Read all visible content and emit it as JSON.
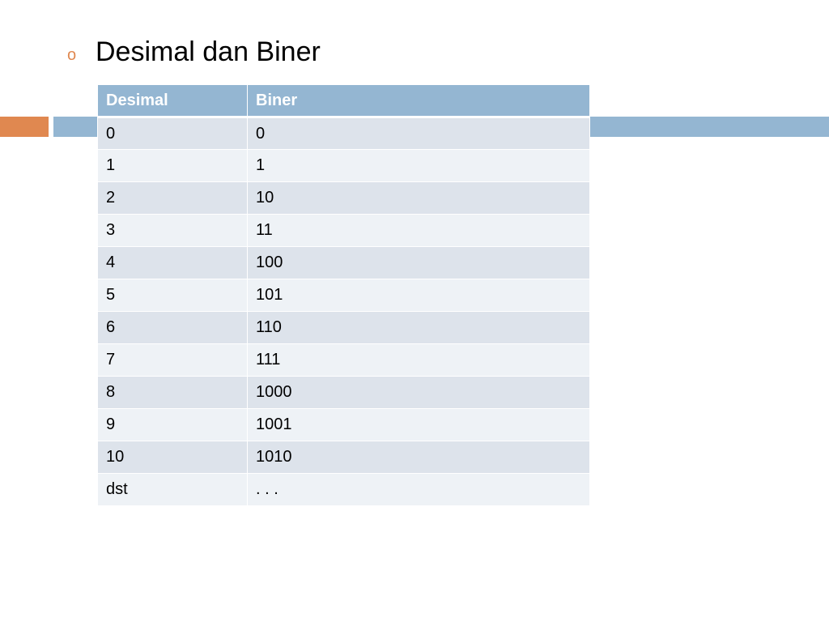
{
  "slide": {
    "title": "Desimal dan Biner",
    "bullet": "o"
  },
  "table": {
    "headers": [
      "Desimal",
      "Biner"
    ],
    "rows": [
      [
        "0",
        "0"
      ],
      [
        "1",
        "1"
      ],
      [
        "2",
        "10"
      ],
      [
        "3",
        "11"
      ],
      [
        "4",
        "100"
      ],
      [
        "5",
        "101"
      ],
      [
        "6",
        "110"
      ],
      [
        "7",
        "111"
      ],
      [
        "8",
        "1000"
      ],
      [
        "9",
        "1001"
      ],
      [
        "10",
        "1010"
      ],
      [
        "dst",
        ". . ."
      ]
    ]
  },
  "colors": {
    "accent_orange": "#e08850",
    "accent_blue": "#94b6d2",
    "row_dark": "#dde3eb",
    "row_light": "#eef2f6"
  }
}
